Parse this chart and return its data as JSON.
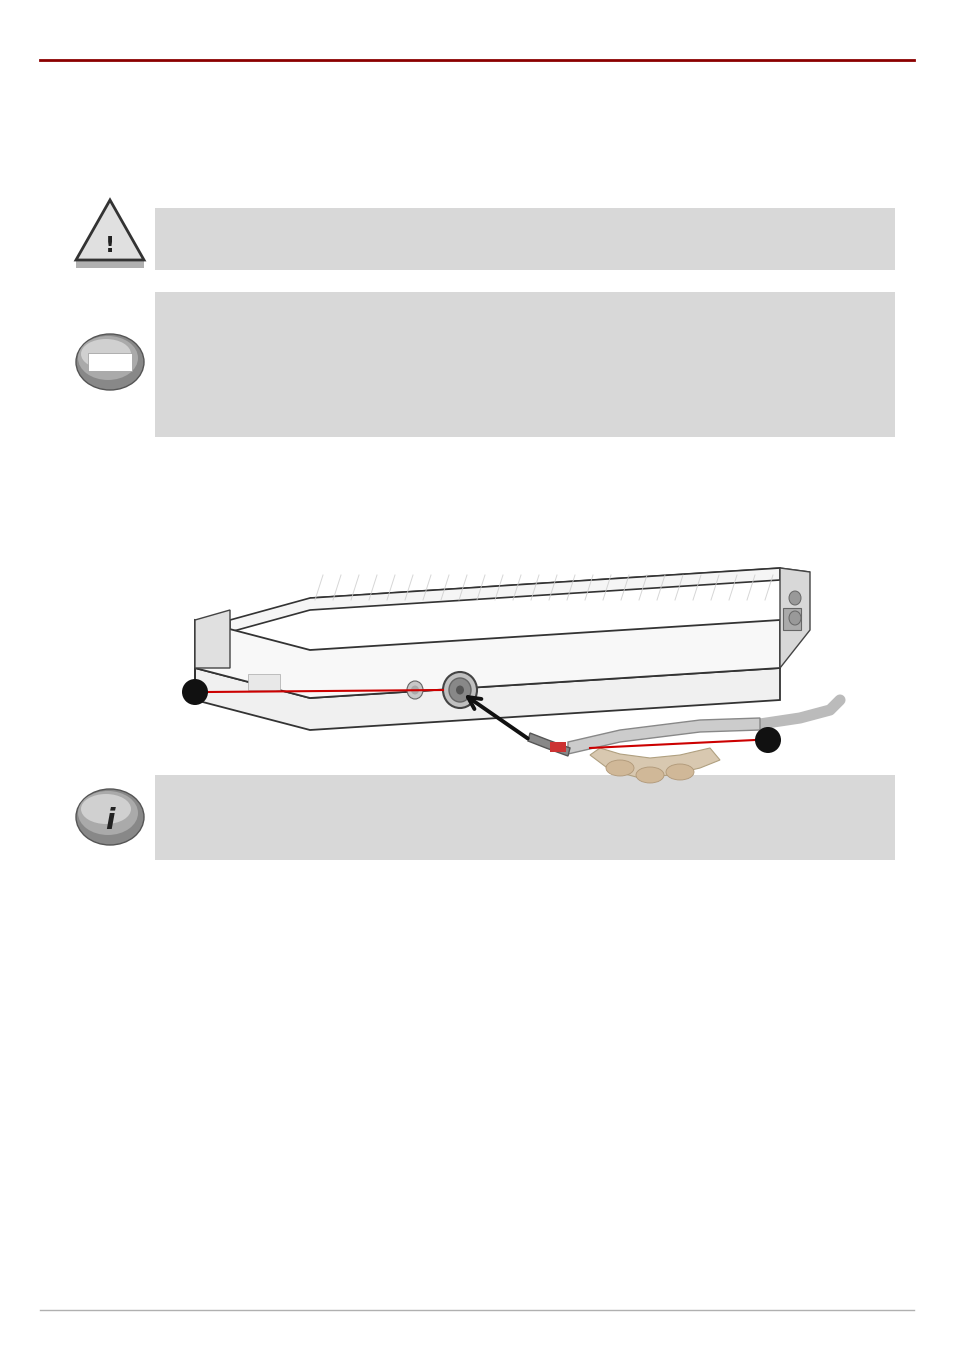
{
  "bg_color": "#ffffff",
  "top_line_color": "#8b0000",
  "bottom_line_color": "#b0b0b0",
  "box1_color": "#d8d8d8",
  "box2_color": "#d8d8d8",
  "box3_color": "#d8d8d8",
  "line1_color": "#cc0000",
  "arrow_color": "#111111",
  "dot_color": "#111111",
  "icon_gray_dark": "#888888",
  "icon_gray_mid": "#aaaaaa",
  "icon_gray_light": "#d0d0d0"
}
